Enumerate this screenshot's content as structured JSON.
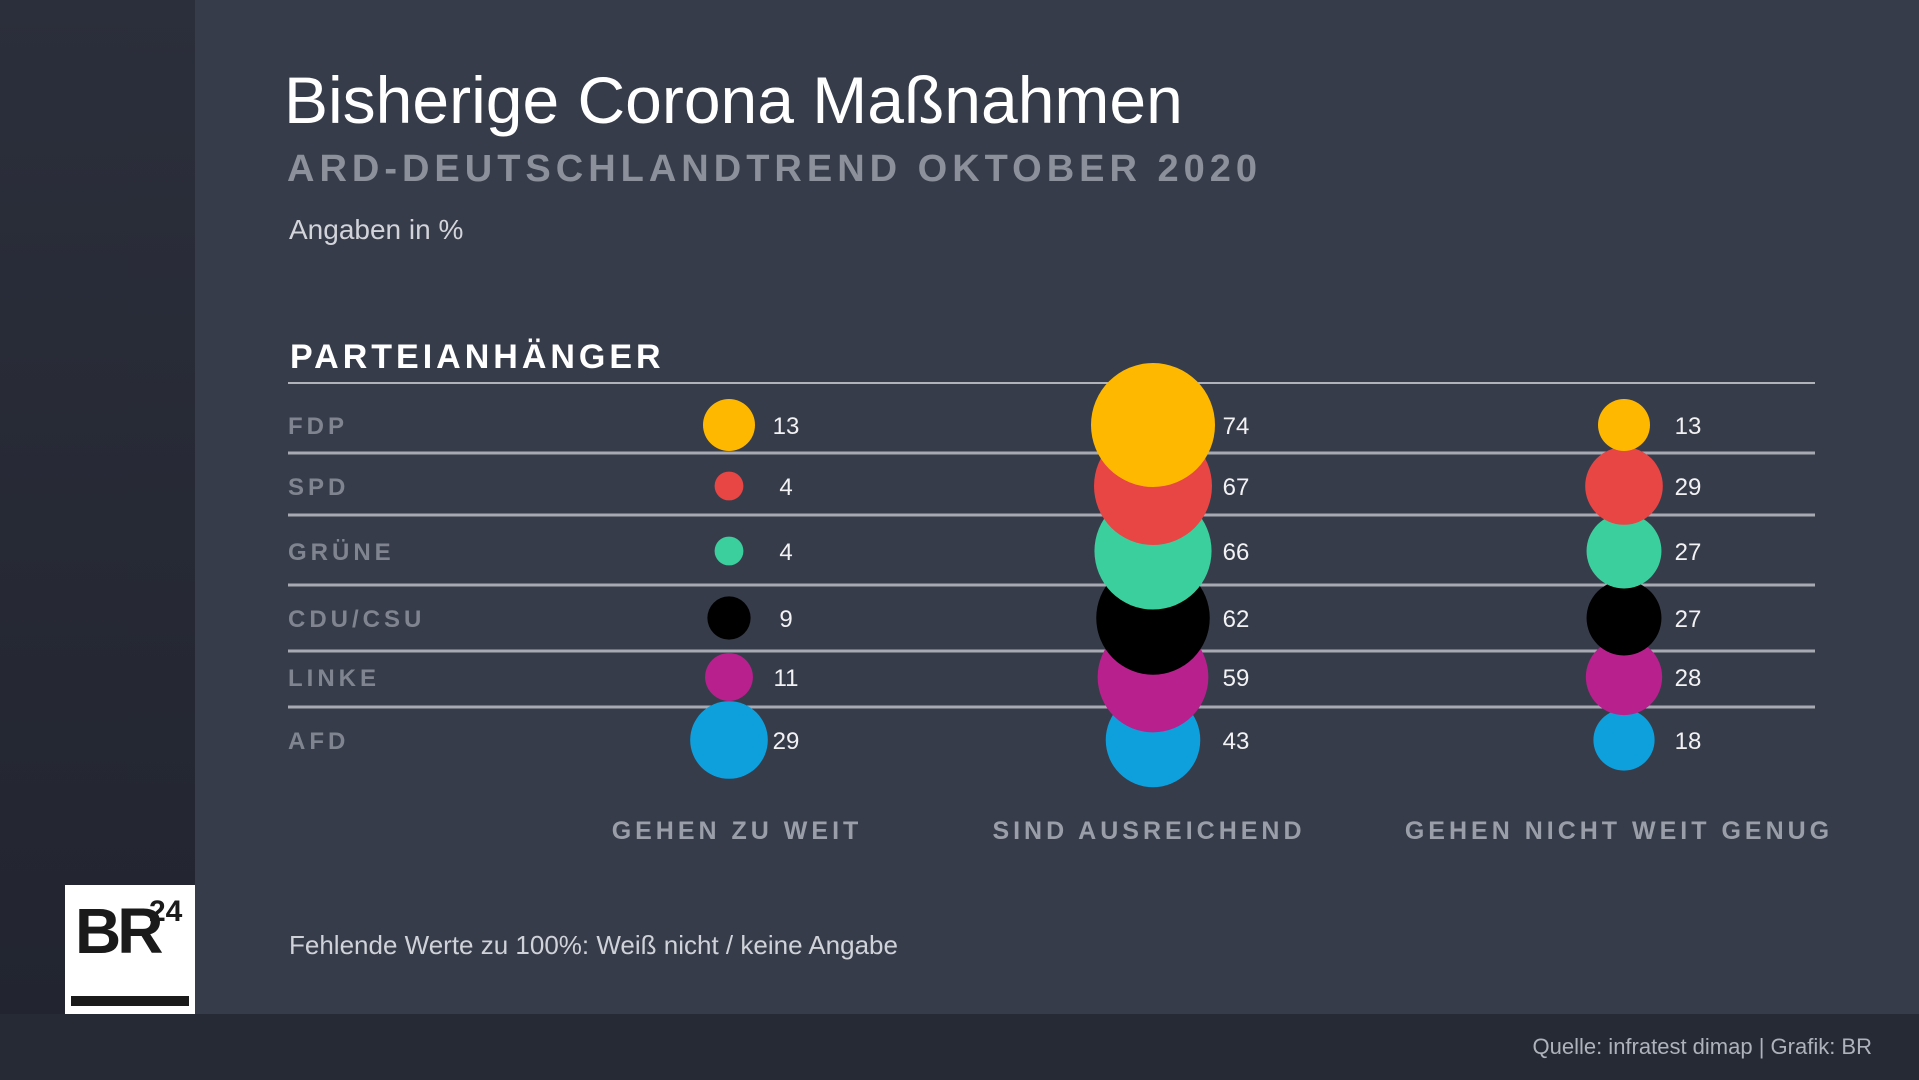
{
  "title": "Bisherige Corona Maßnahmen",
  "subtitle": "ARD-DEUTSCHLANDTREND OKTOBER 2020",
  "unit_note": "Angaben in %",
  "section_label": "PARTEIANHÄNGER",
  "footnote": "Fehlende Werte zu 100%:  Weiß nicht / keine Angabe",
  "source": "Quelle: infratest dimap | Grafik: BR",
  "logo": {
    "text": "BR",
    "superscript": "24"
  },
  "chart_data": {
    "type": "bubble",
    "title": "Bisherige Corona Maßnahmen",
    "subtitle": "ARD-DEUTSCHLANDTREND OKTOBER 2020",
    "unit": "Angaben in %",
    "categories": [
      "FDP",
      "SPD",
      "GRÜNE",
      "CDU/CSU",
      "LINKE",
      "AFD"
    ],
    "columns": [
      "GEHEN ZU WEIT",
      "SIND AUSREICHEND",
      "GEHEN NICHT WEIT GENUG"
    ],
    "colors": [
      "#ffb800",
      "#e84545",
      "#3ccf9e",
      "#000000",
      "#b8208e",
      "#0ea0dc"
    ],
    "series": [
      {
        "name": "GEHEN ZU WEIT",
        "values": [
          13,
          4,
          4,
          9,
          11,
          29
        ]
      },
      {
        "name": "SIND AUSREICHEND",
        "values": [
          74,
          67,
          66,
          62,
          59,
          43
        ]
      },
      {
        "name": "GEHEN NICHT WEIT GENUG",
        "values": [
          13,
          29,
          27,
          27,
          28,
          18
        ]
      }
    ]
  }
}
